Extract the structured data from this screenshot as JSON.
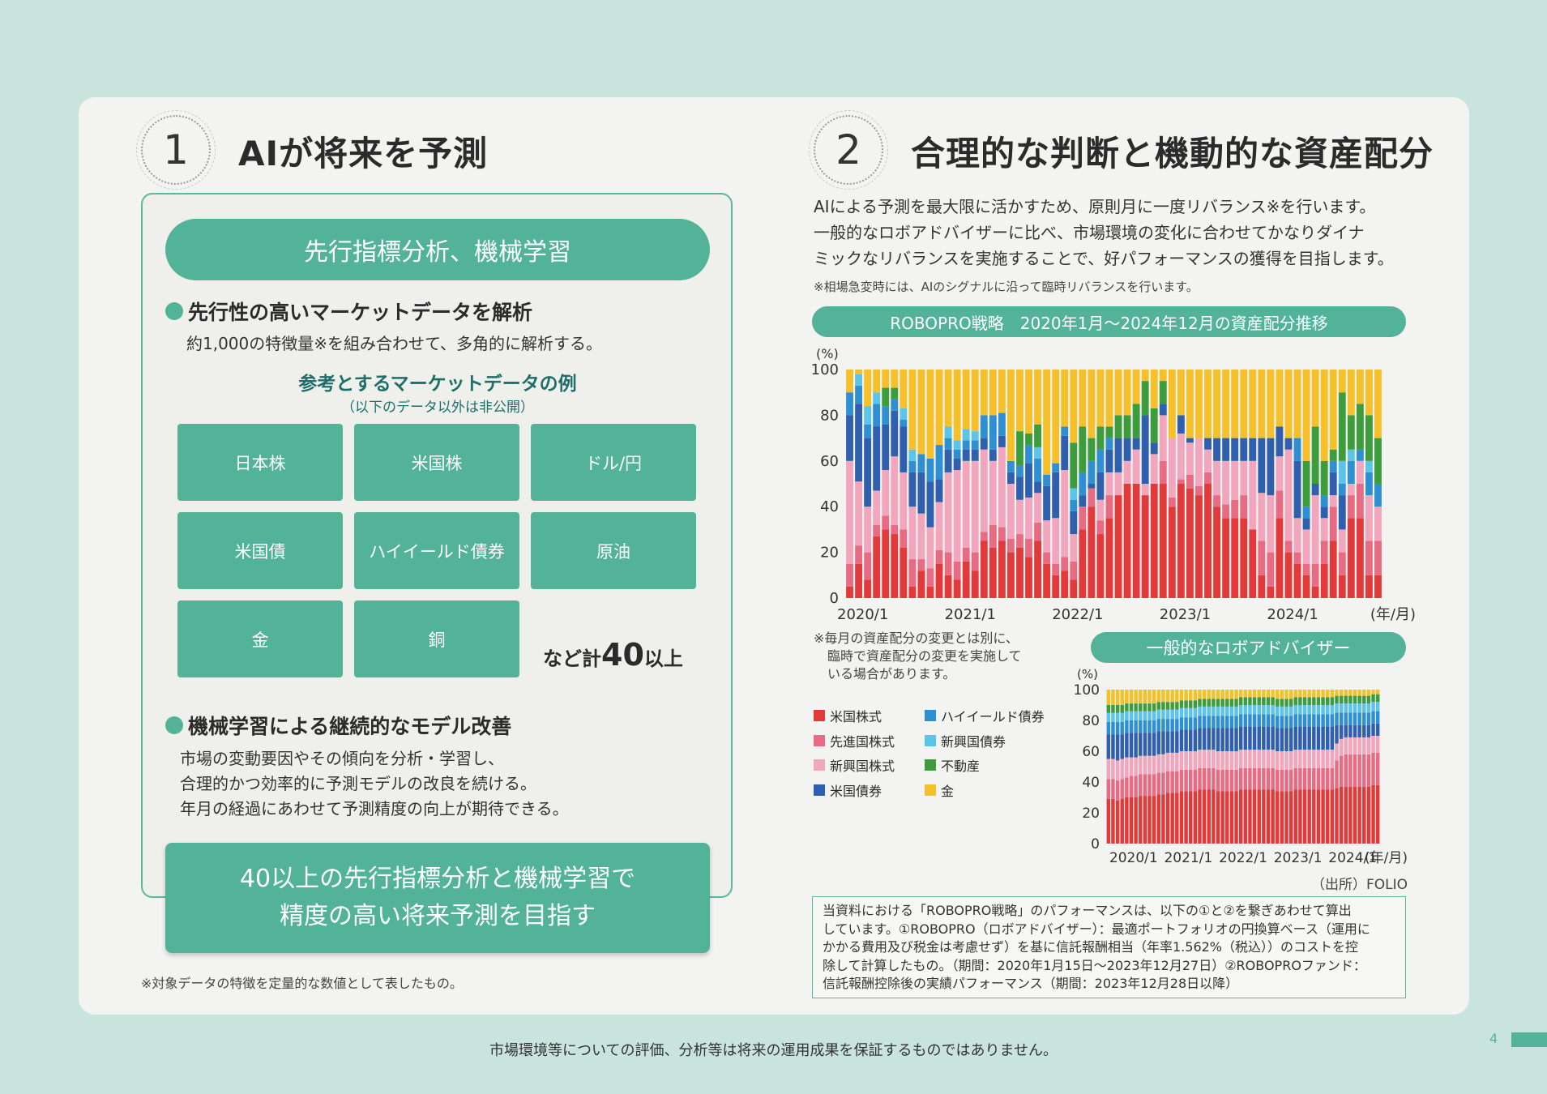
{
  "section1": {
    "number": "1",
    "title": "AIが将来を予測",
    "banner": "先行指標分析、機械学習",
    "bullet1_title": "先行性の高いマーケットデータを解析",
    "bullet1_text": "約1,000の特徴量※を組み合わせて、多角的に解析する。",
    "examples_title": "参考とするマーケットデータの例",
    "examples_sub": "（以下のデータ以外は非公開）",
    "tiles": [
      "日本株",
      "米国株",
      "ドル/円",
      "米国債",
      "ハイイールド債券",
      "原油",
      "金",
      "銅"
    ],
    "more_prefix": "など計",
    "more_number": "40",
    "more_suffix": "以上",
    "bullet2_title": "機械学習による継続的なモデル改善",
    "bullet2_lines": [
      "市場の変動要因やその傾向を分析・学習し、",
      "合理的かつ効率的に予測モデルの改良を続ける。",
      "年月の経過にあわせて予測精度の向上が期待できる。"
    ],
    "callout_lines": [
      "40以上の先行指標分析と機械学習で",
      "精度の高い将来予測を目指す"
    ],
    "footnote": "※対象データの特徴を定量的な数値として表したもの。"
  },
  "section2": {
    "number": "2",
    "title": "合理的な判断と機動的な資産配分",
    "intro_lines": [
      "AIによる予測を最大限に活かすため、原則月に一度リバランス※を行います。",
      "一般的なロボアドバイザーに比べ、市場環境の変化に合わせてかなりダイナ",
      "ミックなリバランスを実施することで、好パフォーマンスの獲得を目指します。"
    ],
    "intro_note": "※相場急変時には、AIのシグナルに沿って臨時リバランスを行います。",
    "chart1_banner": "ROBOPRO戦略　2020年1月～2024年12月の資産配分推移",
    "chart_note_lines": [
      "※毎月の資産配分の変更とは別に、",
      "臨時で資産配分の変更を実施して",
      "いる場合があります。"
    ],
    "chart2_banner": "一般的なロボアドバイザー",
    "source": "（出所）FOLIO",
    "disclaimer_lines": [
      "当資料における「ROBOPRO戦略」のパフォーマンスは、以下の①と②を繋ぎあわせて算出",
      "しています。①ROBOPRO（ロボアドバイザー）：最適ポートフォリオの円換算ベース（運用に",
      "かかる費用及び税金は考慮せず）を基に信託報酬相当（年率1.562%（税込））のコストを控",
      "除して計算したもの。（期間：2020年1月15日～2023年12月27日）②ROBOPROファンド：",
      "信託報酬控除後の実績パフォーマンス（期間：2023年12月28日以降）"
    ]
  },
  "footer": {
    "disclaimer": "市場環境等についての評価、分析等は将来の運用成果を保証するものではありません。",
    "page_number": "4"
  },
  "chart_data": [
    {
      "type": "bar",
      "stacked": true,
      "yunit": "(%)",
      "ylim": [
        0,
        100
      ],
      "yticks": [
        0,
        20,
        40,
        60,
        80,
        100
      ],
      "xtick_labels": [
        "2020/1",
        "2021/1",
        "2022/1",
        "2023/1",
        "2024/1"
      ],
      "xunit": "(年/月)",
      "months": 60,
      "series": [
        {
          "name": "米国株式",
          "color": "#e23a3a",
          "values": [
            5,
            15,
            8,
            27,
            30,
            28,
            22,
            5,
            12,
            5,
            15,
            10,
            8,
            16,
            12,
            25,
            22,
            25,
            20,
            22,
            18,
            25,
            15,
            10,
            12,
            8,
            30,
            40,
            28,
            35,
            45,
            50,
            50,
            45,
            50,
            50,
            40,
            50,
            48,
            45,
            50,
            40,
            35,
            35,
            35,
            30,
            10,
            5,
            35,
            20,
            15,
            10,
            5,
            15,
            25,
            10,
            35,
            35,
            10,
            10
          ]
        },
        {
          "name": "先進国株式",
          "color": "#e86b84",
          "values": [
            10,
            8,
            12,
            5,
            6,
            4,
            8,
            12,
            5,
            8,
            6,
            10,
            8,
            6,
            8,
            4,
            10,
            6,
            6,
            6,
            8,
            8,
            5,
            5,
            6,
            8,
            10,
            8,
            6,
            10,
            0,
            0,
            0,
            0,
            0,
            10,
            4,
            2,
            6,
            4,
            5,
            5,
            6,
            8,
            10,
            0,
            15,
            15,
            12,
            5,
            5,
            5,
            10,
            10,
            15,
            10,
            10,
            15,
            15,
            15
          ]
        },
        {
          "name": "新興国株式",
          "color": "#f2a6bd",
          "values": [
            45,
            28,
            20,
            15,
            20,
            30,
            25,
            23,
            20,
            18,
            21,
            35,
            40,
            38,
            40,
            36,
            28,
            35,
            24,
            15,
            18,
            13,
            14,
            20,
            38,
            12,
            0,
            0,
            9,
            10,
            10,
            10,
            15,
            5,
            13,
            20,
            26,
            20,
            14,
            21,
            10,
            15,
            19,
            17,
            15,
            30,
            21,
            25,
            15,
            40,
            15,
            15,
            30,
            10,
            5,
            10,
            5,
            10,
            20,
            15
          ]
        },
        {
          "name": "米国債券",
          "color": "#2f5fad",
          "values": [
            20,
            34,
            30,
            28,
            20,
            20,
            20,
            15,
            18,
            20,
            10,
            10,
            5,
            5,
            5,
            5,
            5,
            5,
            5,
            10,
            15,
            5,
            15,
            20,
            15,
            10,
            5,
            2,
            12,
            10,
            15,
            10,
            5,
            30,
            5,
            5,
            0,
            8,
            2,
            0,
            5,
            10,
            10,
            10,
            10,
            10,
            24,
            25,
            13,
            5,
            25,
            5,
            5,
            5,
            10,
            15,
            0,
            0,
            0,
            0
          ]
        },
        {
          "name": "ハイイールド債券",
          "color": "#2e8fd2",
          "values": [
            10,
            8,
            6,
            10,
            8,
            5,
            3,
            5,
            8,
            10,
            15,
            5,
            4,
            4,
            4,
            10,
            15,
            10,
            5,
            5,
            8,
            10,
            5,
            4,
            4,
            5,
            10,
            10,
            10,
            5,
            0,
            0,
            0,
            0,
            0,
            0,
            0,
            0,
            0,
            0,
            0,
            0,
            0,
            0,
            0,
            0,
            0,
            0,
            0,
            0,
            10,
            5,
            0,
            5,
            5,
            5,
            10,
            5,
            10,
            10
          ]
        },
        {
          "name": "新興国債券",
          "color": "#5bc4e8",
          "values": [
            0,
            5,
            8,
            5,
            0,
            0,
            5,
            5,
            0,
            0,
            0,
            5,
            4,
            5,
            4,
            0,
            0,
            0,
            0,
            0,
            0,
            5,
            0,
            0,
            0,
            5,
            0,
            0,
            0,
            0,
            0,
            0,
            0,
            0,
            0,
            0,
            0,
            0,
            0,
            0,
            0,
            0,
            0,
            0,
            0,
            0,
            0,
            0,
            0,
            0,
            0,
            0,
            0,
            0,
            0,
            10,
            5,
            0,
            5,
            0
          ]
        },
        {
          "name": "不動産",
          "color": "#3d9c3c",
          "values": [
            0,
            0,
            0,
            0,
            8,
            5,
            0,
            0,
            0,
            0,
            0,
            0,
            0,
            0,
            0,
            0,
            0,
            0,
            0,
            15,
            5,
            10,
            0,
            0,
            0,
            20,
            20,
            10,
            10,
            5,
            10,
            10,
            15,
            15,
            15,
            10,
            0,
            0,
            0,
            0,
            0,
            0,
            0,
            0,
            0,
            0,
            0,
            0,
            0,
            0,
            0,
            20,
            25,
            15,
            5,
            30,
            15,
            20,
            20,
            20
          ]
        },
        {
          "name": "金",
          "color": "#f5c02a",
          "values": [
            10,
            2,
            16,
            10,
            8,
            8,
            17,
            35,
            37,
            39,
            33,
            25,
            31,
            26,
            27,
            20,
            20,
            19,
            40,
            27,
            28,
            24,
            46,
            41,
            25,
            32,
            25,
            30,
            25,
            25,
            20,
            20,
            15,
            5,
            17,
            5,
            30,
            20,
            30,
            30,
            30,
            30,
            30,
            30,
            30,
            30,
            30,
            30,
            25,
            30,
            30,
            40,
            25,
            40,
            35,
            10,
            20,
            15,
            20,
            30
          ]
        }
      ]
    },
    {
      "type": "bar",
      "stacked": true,
      "yunit": "(%)",
      "ylim": [
        0,
        100
      ],
      "yticks": [
        0,
        20,
        40,
        60,
        80,
        100
      ],
      "xtick_labels": [
        "2020/1",
        "2021/1",
        "2022/1",
        "2023/1",
        "2024/1"
      ],
      "xunit": "(年/月)",
      "months": 60,
      "series": [
        {
          "name": "米国株式",
          "color": "#e23a3a",
          "values": [
            29,
            29,
            28,
            29,
            30,
            30,
            30,
            31,
            31,
            31,
            31,
            32,
            32,
            33,
            33,
            33,
            34,
            34,
            34,
            34,
            35,
            35,
            35,
            35,
            34,
            34,
            34,
            34,
            34,
            35,
            35,
            35,
            35,
            35,
            35,
            35,
            35,
            34,
            34,
            34,
            34,
            35,
            35,
            35,
            35,
            35,
            35,
            35,
            35,
            35,
            36,
            37,
            37,
            37,
            37,
            37,
            37,
            37,
            38,
            38
          ]
        },
        {
          "name": "先進国株式",
          "color": "#e86b84",
          "values": [
            13,
            13,
            13,
            13,
            13,
            14,
            14,
            14,
            14,
            14,
            14,
            14,
            14,
            14,
            14,
            14,
            14,
            14,
            14,
            14,
            14,
            14,
            14,
            14,
            14,
            14,
            14,
            14,
            14,
            14,
            14,
            14,
            14,
            14,
            14,
            14,
            14,
            14,
            14,
            14,
            14,
            14,
            14,
            14,
            14,
            14,
            14,
            14,
            14,
            14,
            18,
            20,
            21,
            21,
            21,
            21,
            21,
            21,
            21,
            21
          ]
        },
        {
          "name": "新興国株式",
          "color": "#f2a6bd",
          "values": [
            13,
            13,
            13,
            13,
            13,
            12,
            12,
            12,
            12,
            12,
            12,
            12,
            12,
            12,
            12,
            12,
            12,
            12,
            12,
            12,
            12,
            12,
            12,
            12,
            12,
            12,
            12,
            12,
            12,
            12,
            12,
            12,
            12,
            12,
            12,
            12,
            12,
            12,
            12,
            12,
            12,
            12,
            12,
            12,
            12,
            12,
            12,
            12,
            12,
            12,
            11,
            11,
            11,
            11,
            11,
            11,
            11,
            11,
            11,
            11
          ]
        },
        {
          "name": "米国債券",
          "color": "#2f5fad",
          "values": [
            16,
            16,
            17,
            16,
            16,
            16,
            16,
            15,
            15,
            15,
            15,
            15,
            15,
            14,
            14,
            14,
            14,
            14,
            14,
            14,
            14,
            14,
            14,
            14,
            15,
            15,
            15,
            15,
            15,
            15,
            15,
            15,
            15,
            15,
            15,
            15,
            15,
            15,
            15,
            15,
            15,
            15,
            15,
            15,
            15,
            15,
            15,
            15,
            15,
            15,
            12,
            9,
            8,
            8,
            8,
            8,
            8,
            8,
            8,
            8
          ]
        },
        {
          "name": "ハイイールド債券",
          "color": "#2e8fd2",
          "values": [
            8,
            8,
            8,
            8,
            8,
            8,
            8,
            8,
            8,
            8,
            8,
            8,
            8,
            8,
            8,
            8,
            8,
            8,
            8,
            8,
            8,
            8,
            8,
            8,
            8,
            8,
            8,
            8,
            8,
            8,
            8,
            8,
            8,
            8,
            8,
            8,
            8,
            8,
            8,
            8,
            8,
            8,
            8,
            8,
            8,
            8,
            8,
            8,
            8,
            8,
            8,
            8,
            8,
            8,
            8,
            8,
            8,
            8,
            8,
            8
          ]
        },
        {
          "name": "新興国債券",
          "color": "#5bc4e8",
          "values": [
            6,
            6,
            6,
            6,
            6,
            6,
            6,
            6,
            6,
            6,
            6,
            6,
            6,
            6,
            6,
            6,
            6,
            6,
            6,
            6,
            6,
            6,
            6,
            6,
            6,
            6,
            6,
            6,
            6,
            6,
            6,
            6,
            6,
            6,
            6,
            6,
            6,
            6,
            6,
            6,
            6,
            6,
            6,
            6,
            6,
            6,
            6,
            6,
            6,
            6,
            6,
            6,
            6,
            6,
            6,
            6,
            6,
            6,
            6,
            6
          ]
        },
        {
          "name": "不動産",
          "color": "#3d9c3c",
          "values": [
            5,
            5,
            5,
            5,
            5,
            5,
            5,
            5,
            5,
            5,
            5,
            5,
            5,
            5,
            5,
            5,
            5,
            5,
            5,
            5,
            5,
            5,
            5,
            5,
            5,
            5,
            5,
            5,
            5,
            5,
            5,
            5,
            5,
            5,
            5,
            5,
            5,
            5,
            5,
            5,
            5,
            5,
            5,
            5,
            5,
            5,
            5,
            5,
            5,
            5,
            5,
            5,
            5,
            5,
            5,
            5,
            5,
            5,
            5,
            5
          ]
        },
        {
          "name": "金",
          "color": "#f5c02a",
          "values": [
            10,
            10,
            10,
            10,
            9,
            9,
            9,
            9,
            9,
            9,
            9,
            8,
            8,
            8,
            8,
            8,
            7,
            7,
            7,
            7,
            6,
            6,
            6,
            6,
            6,
            6,
            6,
            6,
            6,
            5,
            5,
            5,
            5,
            5,
            5,
            5,
            5,
            6,
            6,
            6,
            6,
            5,
            5,
            5,
            5,
            5,
            5,
            5,
            5,
            5,
            4,
            4,
            4,
            4,
            4,
            4,
            4,
            4,
            3,
            3
          ]
        }
      ]
    }
  ]
}
